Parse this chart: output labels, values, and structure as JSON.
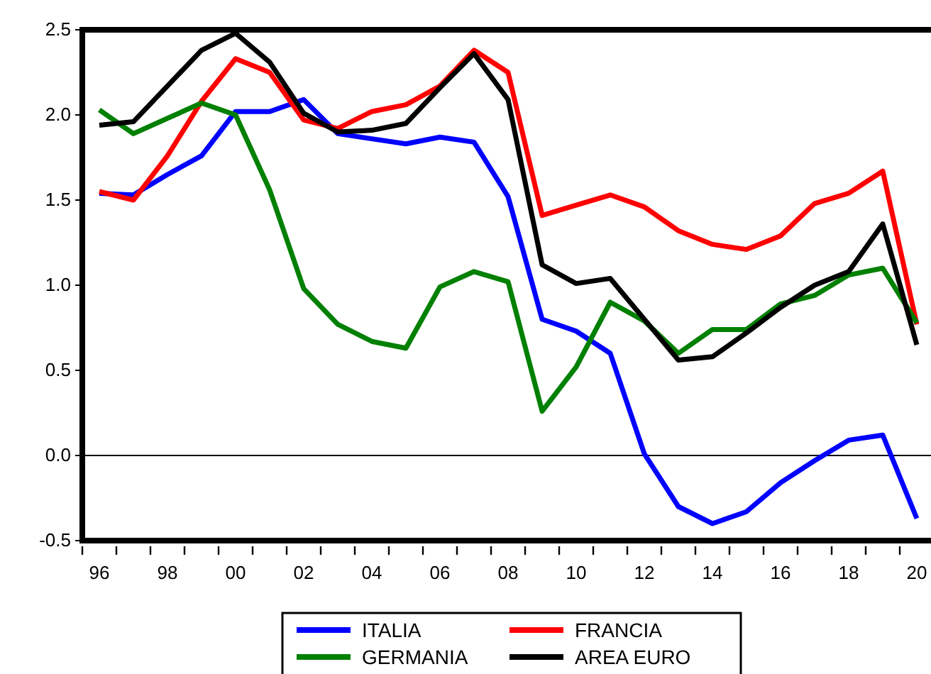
{
  "chart_data": {
    "type": "line",
    "x": [
      1996,
      1997,
      1998,
      1999,
      2000,
      2001,
      2002,
      2003,
      2004,
      2005,
      2006,
      2007,
      2008,
      2009,
      2010,
      2011,
      2012,
      2013,
      2014,
      2015,
      2016,
      2017,
      2018,
      2019,
      2020
    ],
    "series": [
      {
        "name": "ITALIA",
        "color": "#0000ff",
        "values": [
          1.54,
          1.53,
          1.65,
          1.76,
          2.02,
          2.02,
          2.09,
          1.89,
          1.86,
          1.83,
          1.87,
          1.84,
          1.52,
          0.8,
          0.73,
          0.6,
          0.01,
          -0.3,
          -0.4,
          -0.33,
          -0.16,
          -0.03,
          0.09,
          0.12,
          -0.37
        ]
      },
      {
        "name": "FRANCIA",
        "color": "#ff0000",
        "values": [
          1.55,
          1.5,
          1.76,
          2.08,
          2.33,
          2.25,
          1.97,
          1.92,
          2.02,
          2.06,
          2.17,
          2.38,
          2.25,
          1.41,
          1.47,
          1.53,
          1.46,
          1.32,
          1.24,
          1.21,
          1.29,
          1.48,
          1.54,
          1.67,
          0.77
        ]
      },
      {
        "name": "GERMANIA",
        "color": "#008000",
        "values": [
          2.03,
          1.89,
          1.98,
          2.07,
          2.0,
          1.56,
          0.98,
          0.77,
          0.67,
          0.63,
          0.99,
          1.08,
          1.02,
          0.26,
          0.52,
          0.9,
          0.79,
          0.6,
          0.74,
          0.74,
          0.89,
          0.94,
          1.06,
          1.1,
          0.78
        ]
      },
      {
        "name": "AREA EURO",
        "color": "#000000",
        "values": [
          1.94,
          1.96,
          2.17,
          2.38,
          2.48,
          2.31,
          2.01,
          1.9,
          1.91,
          1.95,
          2.16,
          2.36,
          2.09,
          1.12,
          1.01,
          1.04,
          0.8,
          0.56,
          0.58,
          0.72,
          0.87,
          1.0,
          1.08,
          1.36,
          0.65
        ]
      }
    ],
    "xlim": [
      1995.5,
      2020.5
    ],
    "xticks": [
      {
        "value": 1995.5,
        "label": null
      },
      {
        "value": 1996.5,
        "label": null
      },
      {
        "value": 1997.5,
        "label": null
      },
      {
        "value": 1998.5,
        "label": null
      },
      {
        "value": 1999.5,
        "label": null
      },
      {
        "value": 2000.5,
        "label": null
      },
      {
        "value": 2001.5,
        "label": null
      },
      {
        "value": 2002.5,
        "label": null
      },
      {
        "value": 2003.5,
        "label": null
      },
      {
        "value": 2004.5,
        "label": null
      },
      {
        "value": 2005.5,
        "label": null
      },
      {
        "value": 2006.5,
        "label": null
      },
      {
        "value": 2007.5,
        "label": null
      },
      {
        "value": 2008.5,
        "label": null
      },
      {
        "value": 2009.5,
        "label": null
      },
      {
        "value": 2010.5,
        "label": null
      },
      {
        "value": 2011.5,
        "label": null
      },
      {
        "value": 2012.5,
        "label": null
      },
      {
        "value": 2013.5,
        "label": null
      },
      {
        "value": 2014.5,
        "label": null
      },
      {
        "value": 2015.5,
        "label": null
      },
      {
        "value": 2016.5,
        "label": null
      },
      {
        "value": 2017.5,
        "label": null
      },
      {
        "value": 2018.5,
        "label": null
      },
      {
        "value": 2019.5,
        "label": null
      },
      {
        "value": 1996,
        "label": "96"
      },
      {
        "value": 1998,
        "label": "98"
      },
      {
        "value": 2000,
        "label": "00"
      },
      {
        "value": 2002,
        "label": "02"
      },
      {
        "value": 2004,
        "label": "04"
      },
      {
        "value": 2006,
        "label": "06"
      },
      {
        "value": 2008,
        "label": "08"
      },
      {
        "value": 2010,
        "label": "10"
      },
      {
        "value": 2012,
        "label": "12"
      },
      {
        "value": 2014,
        "label": "14"
      },
      {
        "value": 2016,
        "label": "16"
      },
      {
        "value": 2018,
        "label": "18"
      },
      {
        "value": 2020,
        "label": "20"
      }
    ],
    "ylim": [
      -0.5,
      2.5
    ],
    "yticks": [
      {
        "value": -0.5,
        "label": "-0.5"
      },
      {
        "value": 0,
        "label": "0.0"
      },
      {
        "value": 0.5,
        "label": "0.5"
      },
      {
        "value": 1,
        "label": "1.0"
      },
      {
        "value": 1.5,
        "label": "1.5"
      },
      {
        "value": 2,
        "label": "2.0"
      },
      {
        "value": 2.5,
        "label": "2.5"
      }
    ],
    "ref_lines": [
      {
        "axis": "y",
        "value": 0,
        "color": "#000000"
      }
    ],
    "grid": false,
    "legend": "bottom",
    "marker": "none",
    "line_style": "solid"
  }
}
